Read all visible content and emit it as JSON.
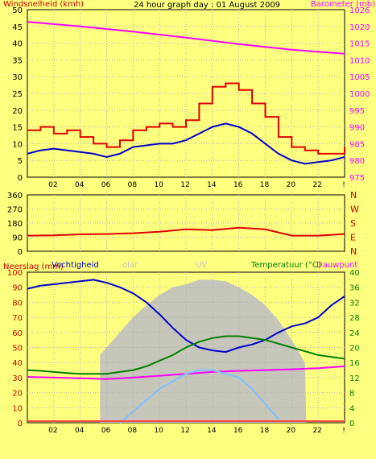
{
  "chart_data": {
    "type": "line",
    "title": "24 hour graph day : 01 August 2009",
    "x_tick_labels": [
      "02",
      "04",
      "06",
      "08",
      "10",
      "12",
      "14",
      "16",
      "18",
      "20",
      "22",
      "!"
    ],
    "panels": [
      {
        "id": "wind-baro",
        "left_label": "Windsnelheid (kmh)",
        "right_label": "Barometer (mb)",
        "y_left": {
          "range": [
            0,
            50
          ],
          "ticks": [
            "0",
            "5",
            "10",
            "15",
            "20",
            "25",
            "30",
            "35",
            "40",
            "45",
            "50"
          ]
        },
        "y_right": {
          "range": [
            975,
            1026
          ],
          "ticks": [
            "975",
            "980",
            "985",
            "990",
            "995",
            "1000",
            "1005",
            "1010",
            "1015",
            "1020",
            "1026"
          ]
        },
        "series": [
          {
            "axis": "right",
            "color": "#ff00ff",
            "x": [
              0,
              4,
              8,
              12,
              16,
              20,
              24
            ],
            "y": [
              1022.3,
              1020.9,
              1019.3,
              1017.5,
              1015.5,
              1013.8,
              1012.6
            ]
          },
          {
            "axis": "left",
            "color": "#e00000",
            "step": true,
            "x": [
              0,
              1,
              2,
              3,
              4,
              5,
              6,
              7,
              8,
              9,
              10,
              11,
              12,
              13,
              14,
              15,
              16,
              17,
              18,
              19,
              20,
              21,
              22,
              23,
              24
            ],
            "y": [
              14,
              15,
              13,
              14,
              12,
              10,
              9,
              11,
              14,
              15,
              16,
              15,
              17,
              22,
              27,
              28,
              26,
              22,
              18,
              12,
              9,
              8,
              7,
              7,
              9
            ]
          },
          {
            "axis": "left",
            "color": "#0000cc",
            "x": [
              0,
              1,
              2,
              3,
              4,
              5,
              6,
              7,
              8,
              9,
              10,
              11,
              12,
              13,
              14,
              15,
              16,
              17,
              18,
              19,
              20,
              21,
              22,
              23,
              24
            ],
            "y": [
              7,
              8,
              8.5,
              8,
              7.5,
              7,
              6,
              7,
              9,
              9.5,
              10,
              10,
              11,
              13,
              15,
              16,
              15,
              13,
              10,
              7,
              5,
              4,
              4.5,
              5,
              6
            ]
          }
        ]
      },
      {
        "id": "wind-direction",
        "right_letters": [
          "N",
          "W",
          "S",
          "E",
          "N"
        ],
        "y_left": {
          "range": [
            0,
            360
          ],
          "ticks": [
            "0",
            "90",
            "180",
            "270",
            "360"
          ]
        },
        "series": [
          {
            "axis": "left",
            "color": "#e00000",
            "x": [
              0,
              2,
              4,
              6,
              8,
              10,
              12,
              14,
              16,
              18,
              20,
              22,
              24
            ],
            "y": [
              100,
              102,
              108,
              110,
              115,
              125,
              140,
              135,
              150,
              140,
              100,
              100,
              110
            ]
          }
        ]
      },
      {
        "id": "rain-hum-temp",
        "left_label": "Neerslag (mm)",
        "labels": [
          "Vochtigheid",
          "olar",
          "UV",
          "Temperatuur (°C)",
          "Dauwpunt"
        ],
        "y_left": {
          "range": [
            0,
            100
          ],
          "ticks": [
            "0",
            "10",
            "20",
            "30",
            "40",
            "50",
            "60",
            "70",
            "80",
            "90",
            "100"
          ]
        },
        "y_right": {
          "range": [
            0,
            40
          ],
          "ticks": [
            "0",
            "4",
            "8",
            "12",
            "16",
            "20",
            "24",
            "28",
            "32",
            "36",
            "40"
          ]
        },
        "series": [
          {
            "name": "Vochtigheid",
            "axis": "left",
            "color": "#0000cc",
            "x": [
              0,
              1,
              2,
              3,
              4,
              5,
              6,
              7,
              8,
              9,
              10,
              11,
              12,
              13,
              14,
              15,
              16,
              17,
              18,
              19,
              20,
              21,
              22,
              23,
              24
            ],
            "y": [
              89,
              91,
              92,
              93,
              94,
              95,
              93,
              90,
              86,
              80,
              72,
              63,
              55,
              50,
              48,
              47,
              50,
              52,
              55,
              60,
              64,
              66,
              70,
              78,
              84
            ]
          },
          {
            "name": "Temperatuur (°C)",
            "axis": "right",
            "color": "#008000",
            "x": [
              0,
              1,
              2,
              3,
              4,
              5,
              6,
              7,
              8,
              9,
              10,
              11,
              12,
              13,
              14,
              15,
              16,
              17,
              18,
              19,
              20,
              21,
              22,
              23,
              24
            ],
            "y": [
              14,
              13.8,
              13.5,
              13.2,
              13,
              13,
              13,
              13.5,
              14,
              15,
              16.5,
              18,
              20,
              21.5,
              22.5,
              23,
              23,
              22.5,
              22,
              21,
              20,
              19,
              18,
              17.5,
              17
            ]
          },
          {
            "name": "Dauwpunt",
            "axis": "right",
            "color": "#ff00ff",
            "x": [
              0,
              2,
              4,
              6,
              8,
              10,
              12,
              14,
              16,
              18,
              20,
              22,
              24
            ],
            "y": [
              12.2,
              12,
              11.8,
              11.6,
              12,
              12.5,
              13,
              13.5,
              13.8,
              14,
              14.2,
              14.5,
              15
            ]
          },
          {
            "name": "UV",
            "axis": "right",
            "color": "#80c0ff",
            "x": [
              7,
              8,
              9,
              10,
              11,
              12,
              13,
              14,
              15,
              16,
              17,
              18,
              19
            ],
            "y": [
              0,
              3,
              6,
              9,
              11,
              13,
              14,
              14,
              13,
              12,
              9,
              5,
              1
            ]
          },
          {
            "name": "olar",
            "axis": "left",
            "color": "#c0c0c0",
            "type": "area",
            "x": [
              0,
              5.5,
              5.5,
              6,
              7,
              8,
              9,
              10,
              11,
              12,
              13,
              14,
              15,
              16,
              17,
              18,
              19,
              20,
              21,
              21.1,
              24
            ],
            "y": [
              0,
              0,
              45,
              50,
              60,
              70,
              78,
              85,
              90,
              92,
              95,
              95,
              94,
              90,
              85,
              78,
              68,
              55,
              40,
              0,
              0
            ]
          }
        ]
      }
    ]
  }
}
